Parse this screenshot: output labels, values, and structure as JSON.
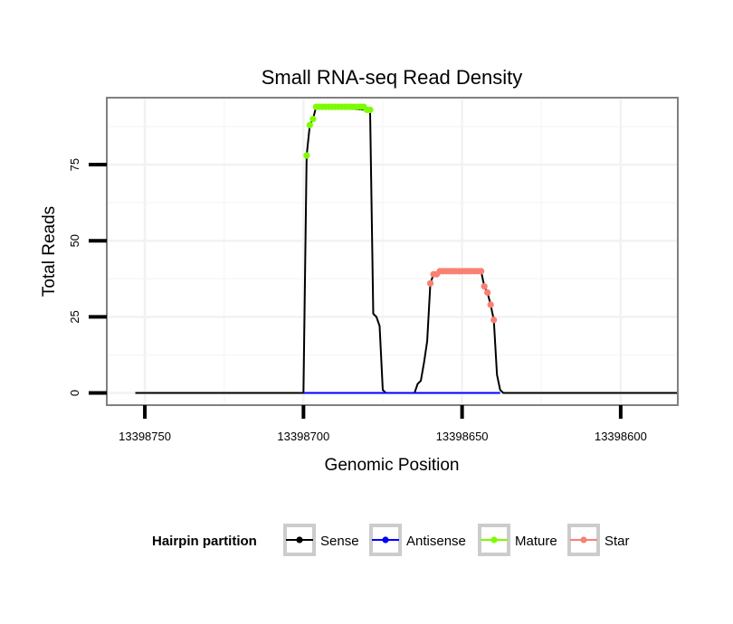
{
  "chart_data": {
    "type": "line",
    "title": "Small RNA-seq Read Density",
    "xlabel": "Genomic Position",
    "ylabel": "Total Reads",
    "x_reversed": true,
    "xlim": [
      13398762,
      13398582
    ],
    "ylim": [
      -4,
      97
    ],
    "x_ticks": [
      13398750,
      13398700,
      13398650,
      13398600
    ],
    "x_tick_labels": [
      "13398750",
      "13398700",
      "13398650",
      "13398600"
    ],
    "y_ticks": [
      0,
      25,
      50,
      75
    ],
    "y_tick_labels": [
      "0",
      "25",
      "50",
      "75"
    ],
    "grid": true,
    "legend": {
      "title": "Hairpin partition",
      "position": "bottom",
      "entries": [
        {
          "label": "Sense",
          "color": "#000000"
        },
        {
          "label": "Antisense",
          "color": "#0000ff"
        },
        {
          "label": "Mature",
          "color": "#7cfc00"
        },
        {
          "label": "Star",
          "color": "#fa8072"
        }
      ]
    },
    "series": [
      {
        "name": "Sense",
        "color": "#000000",
        "kind": "line",
        "x": [
          13398753,
          13398700,
          13398699,
          13398698,
          13398697,
          13398696,
          13398695,
          13398694,
          13398680,
          13398679,
          13398678,
          13398677,
          13398676,
          13398675,
          13398674,
          13398665,
          13398664,
          13398663,
          13398662,
          13398661,
          13398660,
          13398659,
          13398658,
          13398657,
          13398644,
          13398643,
          13398642,
          13398641,
          13398640,
          13398639,
          13398638,
          13398637,
          13398582
        ],
        "y": [
          0,
          0,
          78,
          88,
          90,
          94,
          94,
          94,
          93,
          93,
          26,
          25,
          22,
          1,
          0,
          0,
          3,
          4,
          10,
          17,
          36,
          39,
          39,
          40,
          40,
          35,
          33,
          29,
          24,
          6,
          1,
          0,
          0
        ]
      },
      {
        "name": "Antisense",
        "color": "#0000ff",
        "kind": "line",
        "x": [
          13398700,
          13398638
        ],
        "y": [
          0,
          0
        ]
      },
      {
        "name": "Mature",
        "color": "#7cfc00",
        "kind": "points",
        "x": [
          13398699,
          13398698,
          13398697,
          13398696,
          13398695,
          13398694,
          13398693,
          13398692,
          13398691,
          13398690,
          13398689,
          13398688,
          13398687,
          13398686,
          13398685,
          13398684,
          13398683,
          13398682,
          13398681,
          13398680,
          13398679
        ],
        "y": [
          78,
          88,
          90,
          94,
          94,
          94,
          94,
          94,
          94,
          94,
          94,
          94,
          94,
          94,
          94,
          94,
          94,
          94,
          94,
          93,
          93
        ]
      },
      {
        "name": "Star",
        "color": "#fa8072",
        "kind": "points",
        "x": [
          13398660,
          13398659,
          13398658,
          13398657,
          13398656,
          13398655,
          13398654,
          13398653,
          13398652,
          13398651,
          13398650,
          13398649,
          13398648,
          13398647,
          13398646,
          13398645,
          13398644,
          13398643,
          13398642,
          13398641,
          13398640
        ],
        "y": [
          36,
          39,
          39,
          40,
          40,
          40,
          40,
          40,
          40,
          40,
          40,
          40,
          40,
          40,
          40,
          40,
          40,
          35,
          33,
          29,
          24
        ]
      }
    ]
  }
}
